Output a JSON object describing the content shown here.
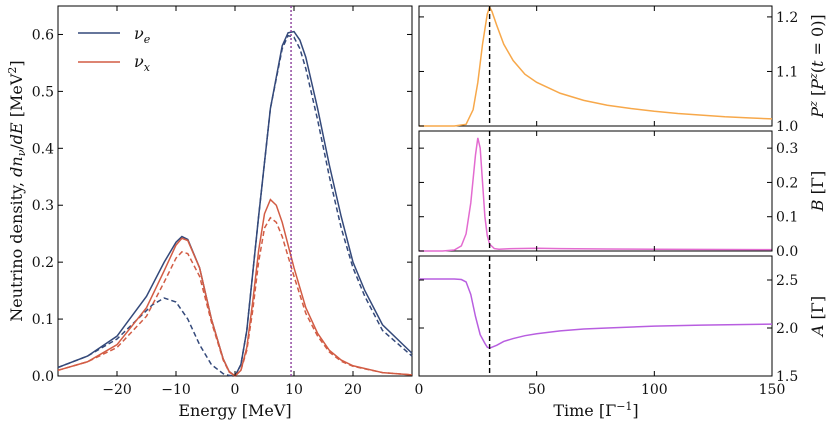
{
  "colors": {
    "nu_e": "#34497a",
    "nu_x": "#d25c44",
    "P": "#f7a84a",
    "B": "#e36bd0",
    "A": "#b85ee0",
    "marker_left": "#8a3d9a",
    "marker_right": "#000000"
  },
  "chart_data": [
    {
      "type": "line",
      "xlabel": "Energy [MeV]",
      "ylabel": "Neutrino density, dn_ν/dE [MeV²]",
      "xlim": [
        -30,
        30
      ],
      "ylim": [
        0.0,
        0.65
      ],
      "xticks": [
        -20,
        -10,
        0,
        10,
        20
      ],
      "yticks": [
        0.0,
        0.1,
        0.2,
        0.3,
        0.4,
        0.5,
        0.6
      ],
      "xtick_labels": [
        "−20",
        "−10",
        "0",
        "10",
        "20"
      ],
      "ytick_labels": [
        "0.0",
        "0.1",
        "0.2",
        "0.3",
        "0.4",
        "0.5",
        "0.6"
      ],
      "legend_position": "top-left",
      "vline_x": 9.5,
      "series": [
        {
          "name": "ν_e",
          "style": "solid",
          "x": [
            -30,
            -25,
            -20,
            -15,
            -12,
            -10,
            -9,
            -8,
            -6,
            -4,
            -2,
            -1,
            0,
            1,
            2,
            4,
            6,
            8,
            9,
            10,
            11,
            12,
            14,
            16,
            18,
            20,
            22,
            25,
            30
          ],
          "y": [
            0.015,
            0.035,
            0.07,
            0.14,
            0.2,
            0.235,
            0.245,
            0.24,
            0.19,
            0.1,
            0.03,
            0.008,
            0.0,
            0.02,
            0.08,
            0.28,
            0.47,
            0.58,
            0.603,
            0.605,
            0.59,
            0.56,
            0.47,
            0.37,
            0.28,
            0.2,
            0.15,
            0.09,
            0.04
          ]
        },
        {
          "name": "",
          "style": "dashed",
          "color_key": "nu_e",
          "x": [
            -30,
            -25,
            -20,
            -16,
            -14,
            -12,
            -10,
            -8,
            -6,
            -4,
            -2,
            -1,
            0,
            1,
            2,
            4,
            6,
            8,
            9,
            10,
            11,
            12,
            14,
            16,
            18,
            20,
            22,
            25,
            30
          ],
          "y": [
            0.015,
            0.035,
            0.065,
            0.105,
            0.125,
            0.137,
            0.13,
            0.1,
            0.055,
            0.02,
            0.004,
            0.001,
            0.0,
            0.02,
            0.08,
            0.28,
            0.47,
            0.575,
            0.598,
            0.595,
            0.575,
            0.54,
            0.45,
            0.35,
            0.26,
            0.19,
            0.14,
            0.08,
            0.035
          ]
        },
        {
          "name": "ν_x",
          "style": "solid",
          "x": [
            -30,
            -25,
            -20,
            -15,
            -12,
            -10,
            -9,
            -8,
            -6,
            -4,
            -2,
            -1,
            0,
            1,
            2,
            3,
            4,
            5,
            6,
            7,
            8,
            10,
            12,
            14,
            16,
            18,
            20,
            25,
            30
          ],
          "y": [
            0.01,
            0.025,
            0.055,
            0.12,
            0.185,
            0.23,
            0.242,
            0.238,
            0.19,
            0.1,
            0.03,
            0.008,
            0.0,
            0.01,
            0.05,
            0.13,
            0.22,
            0.285,
            0.31,
            0.3,
            0.27,
            0.19,
            0.12,
            0.075,
            0.045,
            0.028,
            0.018,
            0.006,
            0.002
          ]
        },
        {
          "name": "",
          "style": "dashed",
          "color_key": "nu_x",
          "x": [
            -30,
            -25,
            -20,
            -15,
            -12,
            -10,
            -9,
            -8,
            -6,
            -4,
            -2,
            -1,
            0,
            1,
            2,
            3,
            4,
            5,
            6,
            7,
            8,
            10,
            12,
            14,
            16,
            18,
            20,
            25,
            30
          ],
          "y": [
            0.01,
            0.025,
            0.05,
            0.105,
            0.165,
            0.207,
            0.218,
            0.215,
            0.175,
            0.095,
            0.028,
            0.007,
            0.0,
            0.01,
            0.045,
            0.115,
            0.2,
            0.26,
            0.278,
            0.27,
            0.245,
            0.175,
            0.11,
            0.07,
            0.042,
            0.026,
            0.017,
            0.006,
            0.002
          ]
        }
      ]
    },
    {
      "type": "line",
      "ylabel": "P^z [P^z(t = 0)]",
      "xlim": [
        0,
        150
      ],
      "ylim": [
        1.0,
        1.22
      ],
      "yticks": [
        1.0,
        1.1,
        1.2
      ],
      "ytick_labels": [
        "1.0",
        "1.1",
        "1.2"
      ],
      "vline_x": 30,
      "series": [
        {
          "name": "",
          "color_key": "P",
          "x": [
            0,
            15,
            20,
            23,
            25,
            27,
            29,
            30,
            31,
            33,
            36,
            40,
            45,
            50,
            60,
            70,
            80,
            90,
            100,
            110,
            120,
            130,
            140,
            150
          ],
          "y": [
            1.0,
            1.0,
            1.003,
            1.03,
            1.08,
            1.15,
            1.205,
            1.218,
            1.21,
            1.185,
            1.15,
            1.12,
            1.095,
            1.08,
            1.06,
            1.047,
            1.038,
            1.032,
            1.027,
            1.023,
            1.02,
            1.017,
            1.015,
            1.013
          ]
        }
      ]
    },
    {
      "type": "line",
      "ylabel": "B [Γ]",
      "xlim": [
        0,
        150
      ],
      "ylim": [
        0.0,
        0.35
      ],
      "yticks": [
        0.0,
        0.1,
        0.2,
        0.3
      ],
      "ytick_labels": [
        "0.0",
        "0.1",
        "0.2",
        "0.3"
      ],
      "vline_x": 30,
      "series": [
        {
          "name": "",
          "color_key": "B",
          "x": [
            0,
            10,
            15,
            18,
            20,
            22,
            24,
            25,
            26,
            27,
            28,
            29,
            30,
            32,
            34,
            36,
            40,
            50,
            60,
            80,
            100,
            150
          ],
          "y": [
            0.0,
            0.0,
            0.003,
            0.015,
            0.05,
            0.14,
            0.28,
            0.33,
            0.3,
            0.2,
            0.1,
            0.045,
            0.02,
            0.007,
            0.005,
            0.006,
            0.007,
            0.008,
            0.007,
            0.006,
            0.005,
            0.004
          ]
        }
      ]
    },
    {
      "type": "line",
      "xlabel": "Time [Γ^−1]",
      "ylabel": "A [Γ]",
      "xlim": [
        0,
        150
      ],
      "ylim": [
        1.5,
        2.75
      ],
      "xticks": [
        0,
        50,
        100,
        150
      ],
      "xtick_labels": [
        "0",
        "50",
        "100",
        "150"
      ],
      "yticks": [
        1.5,
        2.0,
        2.5
      ],
      "ytick_labels": [
        "1.5",
        "2.0",
        "2.5"
      ],
      "vline_x": 30,
      "series": [
        {
          "name": "",
          "color_key": "A",
          "x": [
            0,
            15,
            18,
            20,
            22,
            24,
            26,
            28,
            29,
            30,
            31,
            33,
            36,
            40,
            45,
            50,
            60,
            70,
            80,
            100,
            120,
            150
          ],
          "y": [
            2.51,
            2.51,
            2.505,
            2.48,
            2.35,
            2.12,
            1.93,
            1.84,
            1.8,
            1.79,
            1.8,
            1.82,
            1.86,
            1.89,
            1.92,
            1.94,
            1.97,
            1.99,
            2.0,
            2.02,
            2.03,
            2.04
          ]
        }
      ]
    }
  ]
}
